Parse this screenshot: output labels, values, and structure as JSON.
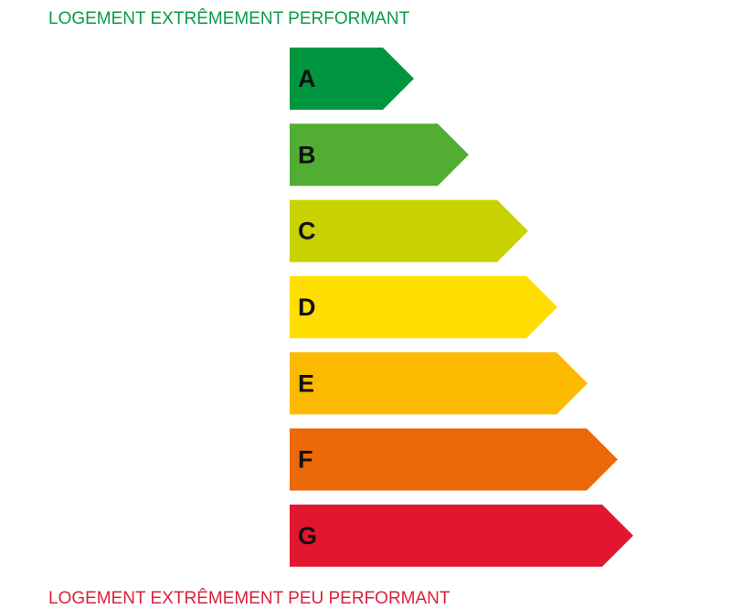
{
  "header": {
    "title": "LOGEMENT EXTRÊMEMENT PERFORMANT"
  },
  "classes": [
    {
      "label": "A"
    },
    {
      "label": "B"
    },
    {
      "label": "C"
    },
    {
      "label": "D"
    },
    {
      "label": "E"
    },
    {
      "label": "F"
    },
    {
      "label": "G"
    }
  ],
  "footer": {
    "title": "LOGEMENT EXTRÊMEMENT PEU PERFORMANT"
  }
}
